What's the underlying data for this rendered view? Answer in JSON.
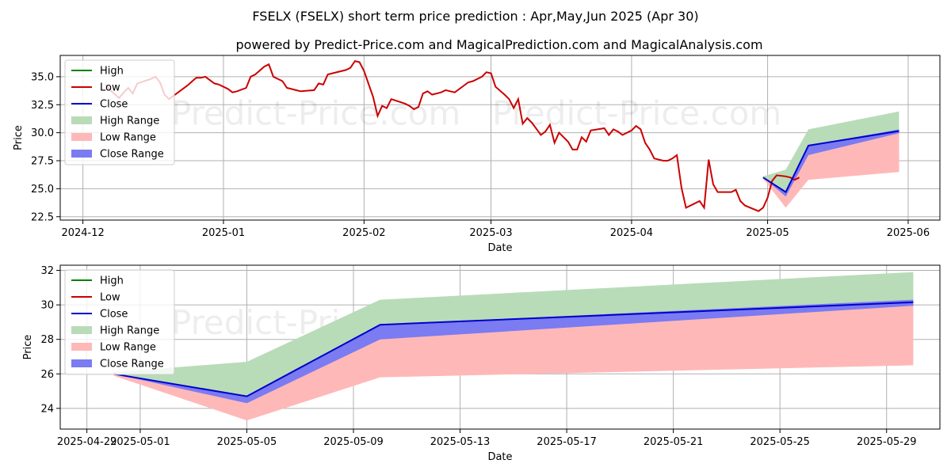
{
  "title": "FSELX (FSELX) short term price prediction : Apr,May,Jun 2025 (Apr 30)",
  "subtitle": "powered by Predict-Price.com and MagicalPrediction.com and MagicalAnalysis.com",
  "watermark": "Predict-Price.com",
  "colors": {
    "high": "#008000",
    "low": "#cc0000",
    "close": "#0000cc",
    "high_range": "#b8dcb8",
    "low_range": "#ffb8b8",
    "close_range": "#7b7bf2"
  },
  "chart_data": [
    {
      "type": "line",
      "xlabel": "Date",
      "ylabel": "Price",
      "grid": true,
      "legend_position": "top-left",
      "legend": [
        "High",
        "Low",
        "Close",
        "High Range",
        "Low Range",
        "Close Range"
      ],
      "xlim": [
        "2024-11-26",
        "2025-06-08"
      ],
      "ylim": [
        22.2,
        36.9
      ],
      "xticks": [
        "2024-12",
        "2025-01",
        "2025-02",
        "2025-03",
        "2025-04",
        "2025-05",
        "2025-06"
      ],
      "yticks": [
        "22.5",
        "25.0",
        "27.5",
        "30.0",
        "32.5",
        "35.0"
      ],
      "history": {
        "name": "Low",
        "points": [
          [
            "2024-12-06",
            34.3
          ],
          [
            "2024-12-07",
            33.8
          ],
          [
            "2024-12-09",
            33.1
          ],
          [
            "2024-12-10",
            33.6
          ],
          [
            "2024-12-11",
            34.0
          ],
          [
            "2024-12-12",
            33.5
          ],
          [
            "2024-12-13",
            34.4
          ],
          [
            "2024-12-16",
            34.8
          ],
          [
            "2024-12-17",
            35.0
          ],
          [
            "2024-12-18",
            34.5
          ],
          [
            "2024-12-19",
            33.4
          ],
          [
            "2024-12-20",
            33.0
          ],
          [
            "2024-12-23",
            33.9
          ],
          [
            "2024-12-24",
            34.2
          ],
          [
            "2024-12-26",
            34.9
          ],
          [
            "2024-12-27",
            34.9
          ],
          [
            "2024-12-28",
            35.0
          ],
          [
            "2024-12-30",
            34.4
          ],
          [
            "2024-12-31",
            34.3
          ],
          [
            "2025-01-02",
            33.9
          ],
          [
            "2025-01-03",
            33.6
          ],
          [
            "2025-01-04",
            33.7
          ],
          [
            "2025-01-06",
            34.0
          ],
          [
            "2025-01-07",
            35.0
          ],
          [
            "2025-01-08",
            35.2
          ],
          [
            "2025-01-10",
            35.9
          ],
          [
            "2025-01-11",
            36.1
          ],
          [
            "2025-01-12",
            35.0
          ],
          [
            "2025-01-14",
            34.6
          ],
          [
            "2025-01-15",
            34.0
          ],
          [
            "2025-01-16",
            33.9
          ],
          [
            "2025-01-17",
            33.8
          ],
          [
            "2025-01-18",
            33.7
          ],
          [
            "2025-01-21",
            33.8
          ],
          [
            "2025-01-22",
            34.4
          ],
          [
            "2025-01-23",
            34.3
          ],
          [
            "2025-01-24",
            35.2
          ],
          [
            "2025-01-25",
            35.3
          ],
          [
            "2025-01-28",
            35.6
          ],
          [
            "2025-01-29",
            35.8
          ],
          [
            "2025-01-30",
            36.4
          ],
          [
            "2025-01-31",
            36.3
          ],
          [
            "2025-02-01",
            35.5
          ],
          [
            "2025-02-03",
            33.2
          ],
          [
            "2025-02-04",
            31.5
          ],
          [
            "2025-02-05",
            32.4
          ],
          [
            "2025-02-06",
            32.2
          ],
          [
            "2025-02-07",
            33.0
          ],
          [
            "2025-02-10",
            32.6
          ],
          [
            "2025-02-11",
            32.4
          ],
          [
            "2025-02-12",
            32.1
          ],
          [
            "2025-02-13",
            32.3
          ],
          [
            "2025-02-14",
            33.5
          ],
          [
            "2025-02-15",
            33.7
          ],
          [
            "2025-02-16",
            33.4
          ],
          [
            "2025-02-18",
            33.6
          ],
          [
            "2025-02-19",
            33.8
          ],
          [
            "2025-02-20",
            33.7
          ],
          [
            "2025-02-21",
            33.6
          ],
          [
            "2025-02-24",
            34.5
          ],
          [
            "2025-02-25",
            34.6
          ],
          [
            "2025-02-27",
            35.0
          ],
          [
            "2025-02-28",
            35.4
          ],
          [
            "2025-03-01",
            35.3
          ],
          [
            "2025-03-02",
            34.1
          ],
          [
            "2025-03-04",
            33.4
          ],
          [
            "2025-03-05",
            33.0
          ],
          [
            "2025-03-06",
            32.2
          ],
          [
            "2025-03-07",
            33.0
          ],
          [
            "2025-03-08",
            30.8
          ],
          [
            "2025-03-09",
            31.3
          ],
          [
            "2025-03-10",
            30.9
          ],
          [
            "2025-03-12",
            29.8
          ],
          [
            "2025-03-13",
            30.1
          ],
          [
            "2025-03-14",
            30.7
          ],
          [
            "2025-03-15",
            29.1
          ],
          [
            "2025-03-16",
            30.0
          ],
          [
            "2025-03-18",
            29.2
          ],
          [
            "2025-03-19",
            28.5
          ],
          [
            "2025-03-20",
            28.5
          ],
          [
            "2025-03-21",
            29.6
          ],
          [
            "2025-03-22",
            29.2
          ],
          [
            "2025-03-23",
            30.2
          ],
          [
            "2025-03-26",
            30.4
          ],
          [
            "2025-03-27",
            29.8
          ],
          [
            "2025-03-28",
            30.3
          ],
          [
            "2025-03-29",
            30.1
          ],
          [
            "2025-03-30",
            29.8
          ],
          [
            "2025-04-01",
            30.2
          ],
          [
            "2025-04-02",
            30.6
          ],
          [
            "2025-04-03",
            30.3
          ],
          [
            "2025-04-04",
            29.1
          ],
          [
            "2025-04-05",
            28.5
          ],
          [
            "2025-04-06",
            27.7
          ],
          [
            "2025-04-08",
            27.5
          ],
          [
            "2025-04-09",
            27.5
          ],
          [
            "2025-04-10",
            27.7
          ],
          [
            "2025-04-11",
            28.0
          ],
          [
            "2025-04-12",
            25.1
          ],
          [
            "2025-04-13",
            23.3
          ],
          [
            "2025-04-15",
            23.7
          ],
          [
            "2025-04-16",
            23.9
          ],
          [
            "2025-04-17",
            23.3
          ],
          [
            "2025-04-18",
            27.6
          ],
          [
            "2025-04-19",
            25.4
          ],
          [
            "2025-04-20",
            24.7
          ],
          [
            "2025-04-23",
            24.7
          ],
          [
            "2025-04-24",
            24.9
          ],
          [
            "2025-04-25",
            23.9
          ],
          [
            "2025-04-26",
            23.5
          ],
          [
            "2025-04-29",
            23.0
          ],
          [
            "2025-04-30",
            23.3
          ],
          [
            "2025-05-01",
            24.2
          ],
          [
            "2025-05-02",
            25.7
          ],
          [
            "2025-05-03",
            26.2
          ],
          [
            "2025-05-05",
            26.1
          ],
          [
            "2025-05-06",
            26.0
          ],
          [
            "2025-05-07",
            25.8
          ],
          [
            "2025-05-08",
            26.0
          ]
        ]
      },
      "forecast": {
        "x": [
          "2025-04-30",
          "2025-05-05",
          "2025-05-10",
          "2025-05-30"
        ],
        "close": [
          26.0,
          24.7,
          28.85,
          30.15
        ],
        "high_range": {
          "upper": [
            26.1,
            26.7,
            30.3,
            31.9
          ],
          "lower": [
            26.0,
            24.7,
            28.85,
            30.15
          ]
        },
        "low_range": {
          "upper": [
            26.0,
            24.7,
            28.85,
            30.15
          ],
          "lower": [
            25.9,
            23.3,
            25.8,
            26.5
          ]
        },
        "close_range": {
          "upper": [
            26.0,
            24.7,
            28.85,
            30.3
          ],
          "lower": [
            26.0,
            24.3,
            28.0,
            29.95
          ]
        }
      }
    },
    {
      "type": "area",
      "xlabel": "Date",
      "ylabel": "Price",
      "grid": true,
      "legend_position": "top-left",
      "legend": [
        "High",
        "Low",
        "Close",
        "High Range",
        "Low Range",
        "Close Range"
      ],
      "xlim": [
        "2025-04-28",
        "2025-05-31"
      ],
      "ylim": [
        22.8,
        32.3
      ],
      "xticks": [
        "2025-04-29",
        "2025-05-01",
        "2025-05-05",
        "2025-05-09",
        "2025-05-13",
        "2025-05-17",
        "2025-05-21",
        "2025-05-25",
        "2025-05-29"
      ],
      "yticks": [
        "24",
        "26",
        "28",
        "30",
        "32"
      ],
      "forecast": {
        "x": [
          "2025-04-30",
          "2025-05-05",
          "2025-05-10",
          "2025-05-30"
        ],
        "close": [
          26.0,
          24.7,
          28.85,
          30.15
        ],
        "high_range": {
          "upper": [
            26.1,
            26.7,
            30.3,
            31.9
          ],
          "lower": [
            26.0,
            24.7,
            28.85,
            30.15
          ]
        },
        "low_range": {
          "upper": [
            26.0,
            24.7,
            28.85,
            30.15
          ],
          "lower": [
            25.9,
            23.3,
            25.8,
            26.5
          ]
        },
        "close_range": {
          "upper": [
            26.0,
            24.7,
            28.85,
            30.3
          ],
          "lower": [
            26.0,
            24.3,
            28.0,
            29.95
          ]
        }
      }
    }
  ]
}
